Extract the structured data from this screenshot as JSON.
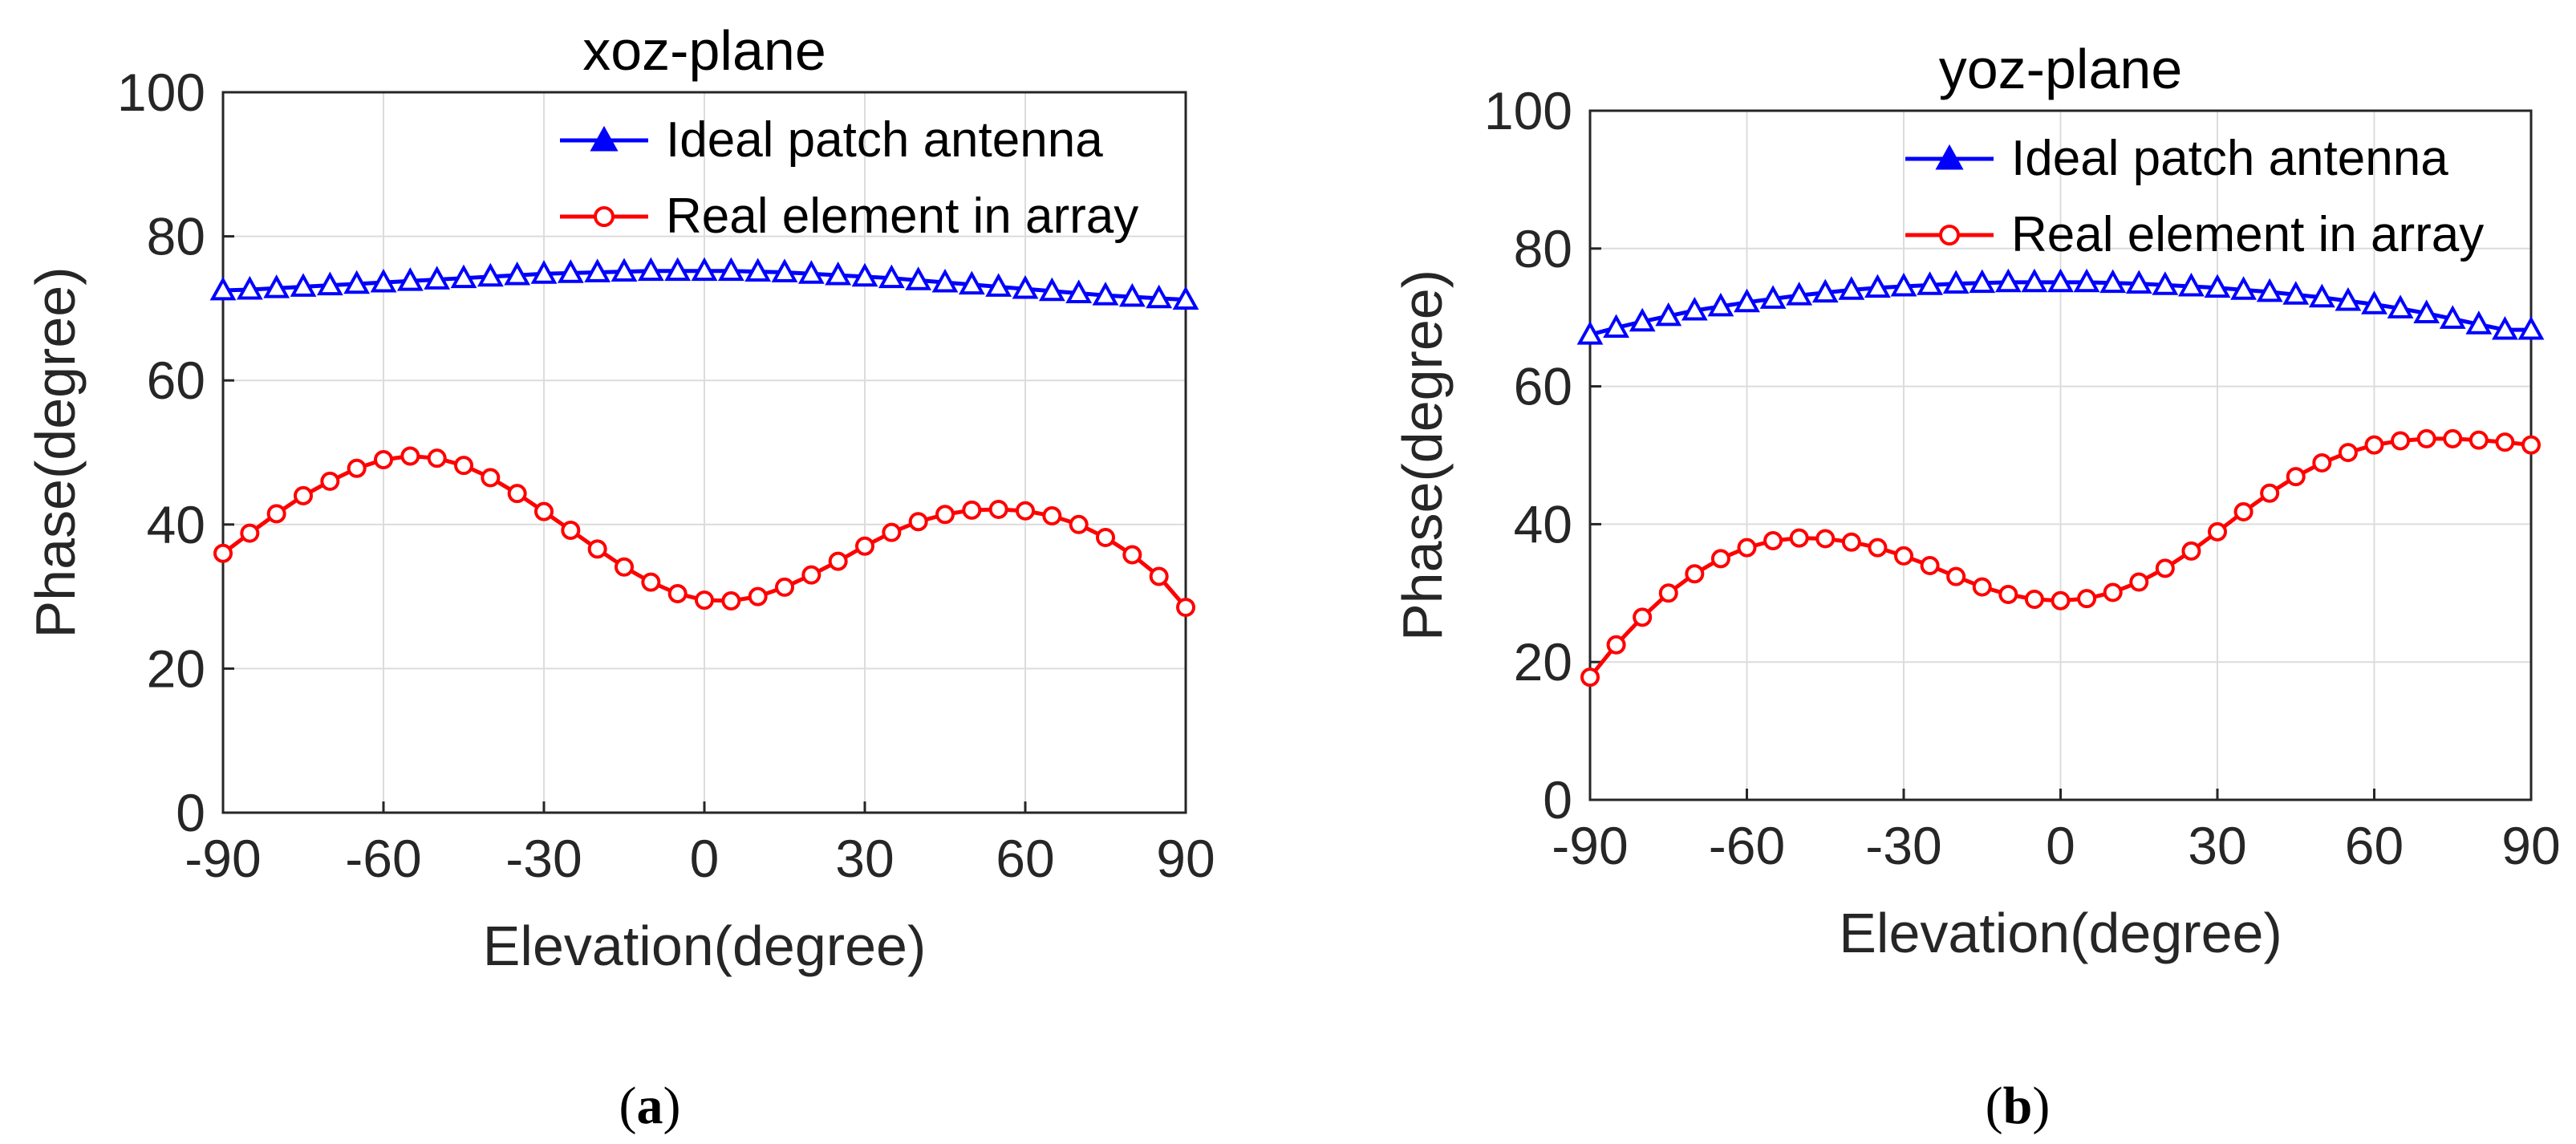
{
  "chart_data": [
    {
      "type": "line",
      "title": "xoz-plane",
      "xlabel": "Elevation(degree)",
      "ylabel": "Phase(degree)",
      "xlim": [
        -90,
        90
      ],
      "ylim": [
        0,
        100
      ],
      "xticks": [
        "-90",
        "-60",
        "-30",
        "0",
        "30",
        "60",
        "90"
      ],
      "yticks": [
        "0",
        "20",
        "40",
        "60",
        "80",
        "100"
      ],
      "grid": true,
      "legend_position": "top-right",
      "caption": {
        "open": "(",
        "letter": "a",
        "close": ")"
      },
      "x": [
        -90,
        -85,
        -80,
        -75,
        -70,
        -65,
        -60,
        -55,
        -50,
        -45,
        -40,
        -35,
        -30,
        -25,
        -20,
        -15,
        -10,
        -5,
        0,
        5,
        10,
        15,
        20,
        25,
        30,
        35,
        40,
        45,
        50,
        55,
        60,
        65,
        70,
        75,
        80,
        85,
        90
      ],
      "series": [
        {
          "name": "Ideal patch antenna",
          "color": "#0000ff",
          "marker": "triangle",
          "values": [
            72.5,
            72.6,
            72.8,
            73.0,
            73.2,
            73.4,
            73.6,
            73.8,
            74.0,
            74.2,
            74.4,
            74.6,
            74.8,
            74.9,
            75.0,
            75.1,
            75.2,
            75.2,
            75.2,
            75.2,
            75.1,
            75.0,
            74.8,
            74.6,
            74.4,
            74.2,
            73.9,
            73.6,
            73.3,
            73.0,
            72.7,
            72.4,
            72.1,
            71.8,
            71.6,
            71.4,
            71.2
          ]
        },
        {
          "name": "Real element in array",
          "color": "#ff0000",
          "marker": "circle",
          "values": [
            36.0,
            38.8,
            41.5,
            44.0,
            46.0,
            47.8,
            49.0,
            49.5,
            49.2,
            48.2,
            46.5,
            44.3,
            41.8,
            39.2,
            36.6,
            34.1,
            32.0,
            30.4,
            29.5,
            29.4,
            30.0,
            31.3,
            33.0,
            34.9,
            37.0,
            38.9,
            40.4,
            41.4,
            42.0,
            42.1,
            41.9,
            41.2,
            40.0,
            38.2,
            35.8,
            32.8,
            28.5
          ]
        }
      ]
    },
    {
      "type": "line",
      "title": "yoz-plane",
      "xlabel": "Elevation(degree)",
      "ylabel": "Phase(degree)",
      "xlim": [
        -90,
        90
      ],
      "ylim": [
        0,
        100
      ],
      "xticks": [
        "-90",
        "-60",
        "-30",
        "0",
        "30",
        "60",
        "90"
      ],
      "yticks": [
        "0",
        "20",
        "40",
        "60",
        "80",
        "100"
      ],
      "grid": true,
      "legend_position": "top-right",
      "caption": {
        "open": "(",
        "letter": "b",
        "close": ")"
      },
      "x": [
        -90,
        -85,
        -80,
        -75,
        -70,
        -65,
        -60,
        -55,
        -50,
        -45,
        -40,
        -35,
        -30,
        -25,
        -20,
        -15,
        -10,
        -5,
        0,
        5,
        10,
        15,
        20,
        25,
        30,
        35,
        40,
        45,
        50,
        55,
        60,
        65,
        70,
        75,
        80,
        85,
        90
      ],
      "series": [
        {
          "name": "Ideal patch antenna",
          "color": "#0000ff",
          "marker": "triangle",
          "values": [
            67.5,
            68.5,
            69.4,
            70.2,
            71.0,
            71.6,
            72.2,
            72.7,
            73.2,
            73.6,
            74.0,
            74.3,
            74.5,
            74.7,
            74.9,
            75.0,
            75.1,
            75.1,
            75.1,
            75.1,
            75.0,
            74.9,
            74.7,
            74.5,
            74.3,
            74.0,
            73.7,
            73.3,
            72.9,
            72.4,
            71.9,
            71.3,
            70.6,
            69.8,
            69.0,
            68.2,
            68.2
          ]
        },
        {
          "name": "Real element in array",
          "color": "#ff0000",
          "marker": "circle",
          "values": [
            17.8,
            22.5,
            26.5,
            30.0,
            32.8,
            35.0,
            36.6,
            37.6,
            38.0,
            37.9,
            37.4,
            36.6,
            35.4,
            34.0,
            32.4,
            30.9,
            29.8,
            29.1,
            28.9,
            29.2,
            30.1,
            31.6,
            33.6,
            36.1,
            38.9,
            41.8,
            44.5,
            46.9,
            48.9,
            50.4,
            51.5,
            52.1,
            52.4,
            52.4,
            52.2,
            51.9,
            51.5
          ]
        }
      ]
    }
  ]
}
